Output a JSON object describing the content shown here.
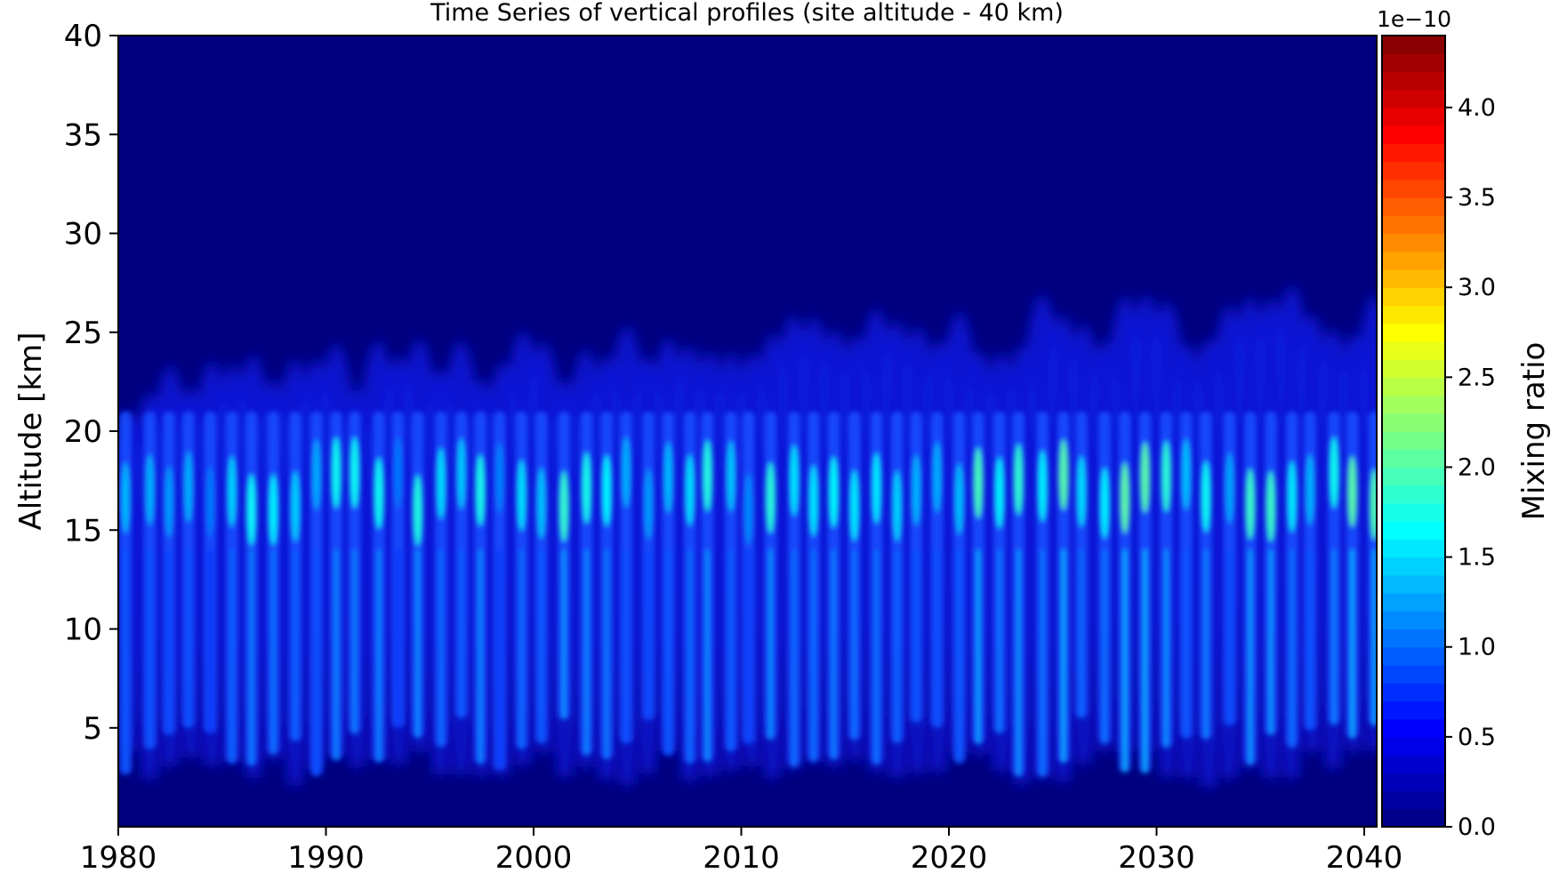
{
  "chart_data": {
    "type": "heatmap",
    "title": "Time Series of vertical profiles (site altitude - 40 km)",
    "xlabel": "",
    "ylabel": "Altitude [km]",
    "xlim": [
      1980,
      2040.6
    ],
    "ylim": [
      0,
      40
    ],
    "x_ticks": [
      1980,
      1990,
      2000,
      2010,
      2020,
      2030,
      2040
    ],
    "y_ticks": [
      5,
      10,
      15,
      20,
      25,
      30,
      35,
      40
    ],
    "colorbar": {
      "label": "Mixing ratio",
      "scale_label": "1e−10",
      "range": [
        0.0,
        4.4
      ],
      "ticks": [
        "0.0",
        "0.5",
        "1.0",
        "1.5",
        "2.0",
        "2.5",
        "3.0",
        "3.5",
        "4.0"
      ],
      "colormap": "jet"
    },
    "pattern": {
      "description_values": {
        "cycles_per_year": 1,
        "peak_altitude_km": 17,
        "typical_peak_mixing_ratio": 1.4,
        "max_peak_mixing_ratio": 2.8,
        "top_envelope_km_1980": 24,
        "top_envelope_km_2040": 28
      }
    },
    "grid": false,
    "legend": "none"
  },
  "colors": {
    "background_field": "#00007f",
    "axis": "#000000"
  }
}
